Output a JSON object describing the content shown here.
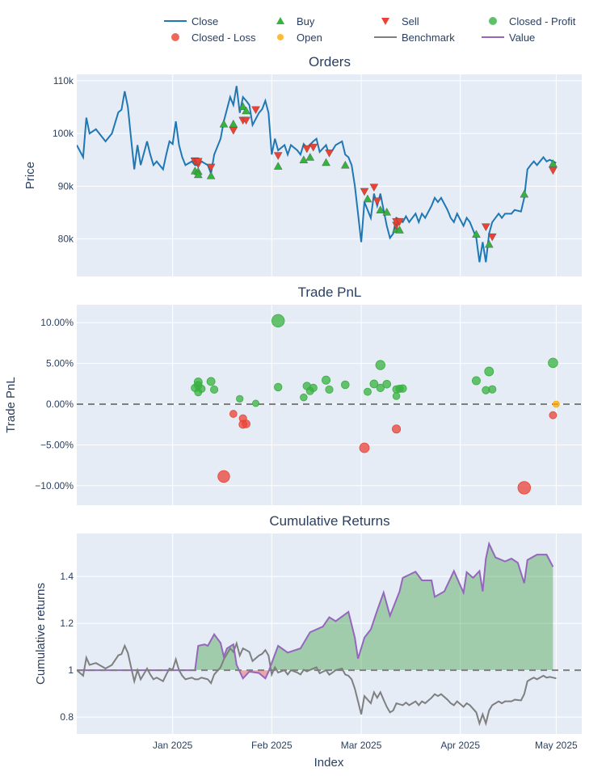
{
  "colors": {
    "close": "#1f77b4",
    "buy": "#37b13f",
    "sell": "#ea4335",
    "profit": "#37b13f",
    "loss": "#ea4335",
    "open": "#ffaa00",
    "benchmark": "#7f7f7f",
    "value": "#9467bd",
    "background": "#e5ecf6",
    "fill_positive": "rgba(0,128,0,0.3)",
    "fill_negative": "rgba(255,0,0,0.3)"
  },
  "legend": [
    {
      "label": "Close",
      "symbol": "line",
      "color": "#1f77b4"
    },
    {
      "label": "Buy",
      "symbol": "triangle-up",
      "color": "#37b13f"
    },
    {
      "label": "Sell",
      "symbol": "triangle-down",
      "color": "#ea4335"
    },
    {
      "label": "Closed - Profit",
      "symbol": "circle",
      "color": "#37b13f"
    },
    {
      "label": "Closed - Loss",
      "symbol": "circle",
      "color": "#ea4335"
    },
    {
      "label": "Open",
      "symbol": "circle",
      "color": "#ffaa00"
    },
    {
      "label": "Benchmark",
      "symbol": "line",
      "color": "#7f7f7f"
    },
    {
      "label": "Value",
      "symbol": "line",
      "color": "#9467bd"
    }
  ],
  "xaxis": {
    "label": "Index",
    "range": [
      "2024-12-02",
      "2025-05-09"
    ],
    "ticks": [
      {
        "date": "2025-01-01",
        "label": "Jan 2025"
      },
      {
        "date": "2025-02-01",
        "label": "Feb 2025"
      },
      {
        "date": "2025-03-01",
        "label": "Mar 2025"
      },
      {
        "date": "2025-04-01",
        "label": "Apr 2025"
      },
      {
        "date": "2025-05-01",
        "label": "May 2025"
      }
    ]
  },
  "chart_data": [
    {
      "type": "line",
      "title": "Orders",
      "ylabel": "Price",
      "ylim": [
        72900,
        111200
      ],
      "yticks": [
        {
          "value": 80000,
          "label": "80k"
        },
        {
          "value": 90000,
          "label": "90k"
        },
        {
          "value": 100000,
          "label": "100k"
        },
        {
          "value": 110000,
          "label": "110k"
        }
      ],
      "grid": true,
      "close": [
        [
          "2024-12-02",
          97800
        ],
        [
          "2024-12-04",
          95500
        ],
        [
          "2024-12-05",
          103000
        ],
        [
          "2024-12-06",
          100000
        ],
        [
          "2024-12-08",
          100800
        ],
        [
          "2024-12-11",
          98500
        ],
        [
          "2024-12-13",
          100000
        ],
        [
          "2024-12-15",
          104000
        ],
        [
          "2024-12-16",
          104500
        ],
        [
          "2024-12-17",
          108000
        ],
        [
          "2024-12-18",
          105000
        ],
        [
          "2024-12-19",
          99000
        ],
        [
          "2024-12-20",
          93200
        ],
        [
          "2024-12-21",
          97800
        ],
        [
          "2024-12-22",
          94000
        ],
        [
          "2024-12-24",
          98500
        ],
        [
          "2024-12-25",
          96000
        ],
        [
          "2024-12-26",
          94000
        ],
        [
          "2024-12-27",
          94700
        ],
        [
          "2024-12-29",
          93200
        ],
        [
          "2024-12-30",
          96000
        ],
        [
          "2024-12-31",
          98500
        ],
        [
          "2025-01-01",
          98000
        ],
        [
          "2025-01-02",
          102300
        ],
        [
          "2025-01-03",
          97800
        ],
        [
          "2025-01-04",
          95500
        ],
        [
          "2025-01-05",
          94000
        ],
        [
          "2025-01-07",
          94700
        ],
        [
          "2025-01-08",
          94000
        ],
        [
          "2025-01-09",
          94000
        ],
        [
          "2025-01-10",
          94700
        ],
        [
          "2025-01-12",
          94000
        ],
        [
          "2025-01-13",
          92400
        ],
        [
          "2025-01-14",
          96000
        ],
        [
          "2025-01-16",
          99000
        ],
        [
          "2025-01-17",
          102300
        ],
        [
          "2025-01-18",
          104600
        ],
        [
          "2025-01-19",
          106900
        ],
        [
          "2025-01-20",
          105400
        ],
        [
          "2025-01-21",
          109000
        ],
        [
          "2025-01-22",
          103900
        ],
        [
          "2025-01-23",
          106900
        ],
        [
          "2025-01-24",
          106200
        ],
        [
          "2025-01-25",
          105400
        ],
        [
          "2025-01-26",
          101600
        ],
        [
          "2025-01-28",
          103900
        ],
        [
          "2025-01-29",
          104600
        ],
        [
          "2025-01-30",
          106200
        ],
        [
          "2025-01-31",
          103900
        ],
        [
          "2025-02-01",
          96000
        ],
        [
          "2025-02-02",
          99000
        ],
        [
          "2025-02-03",
          96800
        ],
        [
          "2025-02-05",
          97800
        ],
        [
          "2025-02-06",
          96000
        ],
        [
          "2025-02-07",
          97800
        ],
        [
          "2025-02-09",
          96800
        ],
        [
          "2025-02-10",
          96000
        ],
        [
          "2025-02-11",
          98000
        ],
        [
          "2025-02-12",
          97300
        ],
        [
          "2025-02-14",
          98500
        ],
        [
          "2025-02-15",
          99000
        ],
        [
          "2025-02-16",
          96500
        ],
        [
          "2025-02-18",
          97800
        ],
        [
          "2025-02-19",
          95900
        ],
        [
          "2025-02-20",
          96800
        ],
        [
          "2025-02-21",
          97800
        ],
        [
          "2025-02-23",
          98500
        ],
        [
          "2025-02-24",
          96000
        ],
        [
          "2025-02-25",
          95500
        ],
        [
          "2025-02-26",
          94000
        ],
        [
          "2025-02-27",
          90100
        ],
        [
          "2025-02-28",
          84800
        ],
        [
          "2025-03-01",
          79400
        ],
        [
          "2025-03-02",
          87000
        ],
        [
          "2025-03-03",
          85500
        ],
        [
          "2025-03-04",
          84000
        ],
        [
          "2025-03-05",
          88600
        ],
        [
          "2025-03-06",
          86300
        ],
        [
          "2025-03-07",
          88600
        ],
        [
          "2025-03-08",
          85500
        ],
        [
          "2025-03-09",
          82500
        ],
        [
          "2025-03-10",
          80200
        ],
        [
          "2025-03-11",
          81000
        ],
        [
          "2025-03-12",
          84000
        ],
        [
          "2025-03-14",
          83200
        ],
        [
          "2025-03-15",
          84300
        ],
        [
          "2025-03-16",
          83200
        ],
        [
          "2025-03-18",
          84800
        ],
        [
          "2025-03-19",
          83200
        ],
        [
          "2025-03-20",
          84800
        ],
        [
          "2025-03-21",
          84000
        ],
        [
          "2025-03-23",
          86300
        ],
        [
          "2025-03-24",
          87800
        ],
        [
          "2025-03-25",
          87000
        ],
        [
          "2025-03-26",
          87800
        ],
        [
          "2025-03-28",
          85500
        ],
        [
          "2025-03-29",
          84000
        ],
        [
          "2025-03-30",
          83200
        ],
        [
          "2025-03-31",
          84800
        ],
        [
          "2025-04-02",
          82500
        ],
        [
          "2025-04-03",
          84000
        ],
        [
          "2025-04-04",
          83200
        ],
        [
          "2025-04-06",
          80200
        ],
        [
          "2025-04-07",
          75600
        ],
        [
          "2025-04-08",
          79400
        ],
        [
          "2025-04-09",
          75600
        ],
        [
          "2025-04-10",
          81000
        ],
        [
          "2025-04-11",
          83200
        ],
        [
          "2025-04-12",
          84000
        ],
        [
          "2025-04-13",
          84800
        ],
        [
          "2025-04-14",
          84000
        ],
        [
          "2025-04-15",
          84800
        ],
        [
          "2025-04-16",
          84800
        ],
        [
          "2025-04-17",
          84800
        ],
        [
          "2025-04-18",
          85500
        ],
        [
          "2025-04-20",
          85200
        ],
        [
          "2025-04-21",
          87800
        ],
        [
          "2025-04-22",
          93200
        ],
        [
          "2025-04-23",
          94000
        ],
        [
          "2025-04-24",
          94700
        ],
        [
          "2025-04-25",
          94000
        ],
        [
          "2025-04-27",
          95500
        ],
        [
          "2025-04-28",
          94700
        ],
        [
          "2025-04-29",
          95000
        ],
        [
          "2025-04-30",
          94700
        ],
        [
          "2025-05-01",
          94400
        ]
      ],
      "buys": [
        [
          "2025-01-08",
          92900
        ],
        [
          "2025-01-09",
          92800
        ],
        [
          "2025-01-09",
          92200
        ],
        [
          "2025-01-13",
          92000
        ],
        [
          "2025-01-17",
          101800
        ],
        [
          "2025-01-20",
          101800
        ],
        [
          "2025-01-23",
          105100
        ],
        [
          "2025-01-24",
          104300
        ],
        [
          "2025-02-03",
          93800
        ],
        [
          "2025-02-11",
          95000
        ],
        [
          "2025-02-13",
          95500
        ],
        [
          "2025-02-18",
          94500
        ],
        [
          "2025-02-24",
          94000
        ],
        [
          "2025-03-03",
          87600
        ],
        [
          "2025-03-07",
          85500
        ],
        [
          "2025-03-09",
          85100
        ],
        [
          "2025-03-12",
          81800
        ],
        [
          "2025-03-13",
          81700
        ],
        [
          "2025-04-06",
          80900
        ],
        [
          "2025-04-10",
          79000
        ],
        [
          "2025-04-21",
          88500
        ],
        [
          "2025-04-30",
          94300
        ]
      ],
      "sells": [
        [
          "2025-01-08",
          94800
        ],
        [
          "2025-01-08",
          94700
        ],
        [
          "2025-01-09",
          94200
        ],
        [
          "2025-01-09",
          94700
        ],
        [
          "2025-01-13",
          93600
        ],
        [
          "2025-01-20",
          100600
        ],
        [
          "2025-01-23",
          102500
        ],
        [
          "2025-01-24",
          102500
        ],
        [
          "2025-01-27",
          104500
        ],
        [
          "2025-02-03",
          95800
        ],
        [
          "2025-02-12",
          97100
        ],
        [
          "2025-02-14",
          97400
        ],
        [
          "2025-02-19",
          96300
        ],
        [
          "2025-03-02",
          89000
        ],
        [
          "2025-03-05",
          89800
        ],
        [
          "2025-03-06",
          87200
        ],
        [
          "2025-03-12",
          82600
        ],
        [
          "2025-03-12",
          83300
        ],
        [
          "2025-03-13",
          83300
        ],
        [
          "2025-04-09",
          82300
        ],
        [
          "2025-04-11",
          80400
        ],
        [
          "2025-04-30",
          93000
        ]
      ]
    },
    {
      "type": "scatter",
      "title": "Trade PnL",
      "ylabel": "Trade PnL",
      "ylim": [
        -12.4,
        12.2
      ],
      "yticks": [
        {
          "value": 10,
          "label": "10.00%"
        },
        {
          "value": 5,
          "label": "5.00%"
        },
        {
          "value": 0,
          "label": "0.00%"
        },
        {
          "value": -5,
          "label": "−5.00%"
        },
        {
          "value": -10,
          "label": "−10.00%"
        }
      ],
      "zero_line": "dashed",
      "closed_profit": [
        [
          "2025-01-09",
          2.72
        ],
        [
          "2025-01-09",
          2.32
        ],
        [
          "2025-01-08",
          1.99
        ],
        [
          "2025-01-10",
          1.89
        ],
        [
          "2025-01-09",
          1.46
        ],
        [
          "2025-01-13",
          2.78
        ],
        [
          "2025-01-14",
          1.79
        ],
        [
          "2025-01-22",
          0.66
        ],
        [
          "2025-01-27",
          0.1
        ],
        [
          "2025-02-03",
          10.23
        ],
        [
          "2025-02-03",
          2.09
        ],
        [
          "2025-02-11",
          0.83
        ],
        [
          "2025-02-12",
          2.22
        ],
        [
          "2025-02-13",
          1.62
        ],
        [
          "2025-02-14",
          1.99
        ],
        [
          "2025-02-18",
          2.95
        ],
        [
          "2025-02-19",
          1.79
        ],
        [
          "2025-02-24",
          2.38
        ],
        [
          "2025-03-03",
          1.52
        ],
        [
          "2025-03-05",
          2.48
        ],
        [
          "2025-03-07",
          4.8
        ],
        [
          "2025-03-07",
          1.99
        ],
        [
          "2025-03-09",
          2.45
        ],
        [
          "2025-03-12",
          0.99
        ],
        [
          "2025-03-12",
          1.82
        ],
        [
          "2025-03-13",
          1.89
        ],
        [
          "2025-03-14",
          1.92
        ],
        [
          "2025-04-06",
          2.88
        ],
        [
          "2025-04-10",
          4.01
        ],
        [
          "2025-04-09",
          1.72
        ],
        [
          "2025-04-11",
          1.82
        ],
        [
          "2025-04-30",
          5.07
        ]
      ],
      "closed_loss": [
        [
          "2025-01-20",
          -1.19
        ],
        [
          "2025-01-23",
          -1.75
        ],
        [
          "2025-01-23",
          -2.48
        ],
        [
          "2025-01-24",
          -2.42
        ],
        [
          "2025-01-17",
          -8.87
        ],
        [
          "2025-03-02",
          -5.36
        ],
        [
          "2025-03-12",
          -3.05
        ],
        [
          "2025-04-21",
          -10.26
        ],
        [
          "2025-04-30",
          -1.36
        ]
      ],
      "open": [
        [
          "2025-05-01",
          0.0
        ]
      ]
    },
    {
      "type": "area",
      "title": "Cumulative Returns",
      "ylabel": "Cumulative returns",
      "ylim": [
        0.728,
        1.583
      ],
      "yticks": [
        {
          "value": 0.8,
          "label": "0.8"
        },
        {
          "value": 1,
          "label": "1"
        },
        {
          "value": 1.2,
          "label": "1.2"
        },
        {
          "value": 1.4,
          "label": "1.4"
        }
      ],
      "baseline": 1,
      "benchmark": "Close normalized to first value",
      "value": [
        [
          "2024-12-02",
          1.0
        ],
        [
          "2025-01-08",
          1.0
        ],
        [
          "2025-01-09",
          1.104
        ],
        [
          "2025-01-11",
          1.11
        ],
        [
          "2025-01-12",
          1.104
        ],
        [
          "2025-01-14",
          1.153
        ],
        [
          "2025-01-16",
          1.116
        ],
        [
          "2025-01-17",
          1.058
        ],
        [
          "2025-01-18",
          1.093
        ],
        [
          "2025-01-20",
          1.11
        ],
        [
          "2025-01-21",
          1.023
        ],
        [
          "2025-01-23",
          0.965
        ],
        [
          "2025-01-25",
          0.994
        ],
        [
          "2025-01-28",
          0.988
        ],
        [
          "2025-01-30",
          0.965
        ],
        [
          "2025-01-31",
          0.994
        ],
        [
          "2025-02-03",
          1.104
        ],
        [
          "2025-02-06",
          1.075
        ],
        [
          "2025-02-10",
          1.093
        ],
        [
          "2025-02-13",
          1.162
        ],
        [
          "2025-02-17",
          1.186
        ],
        [
          "2025-02-19",
          1.226
        ],
        [
          "2025-02-21",
          1.209
        ],
        [
          "2025-02-25",
          1.249
        ],
        [
          "2025-02-27",
          1.139
        ],
        [
          "2025-02-28",
          1.049
        ],
        [
          "2025-03-02",
          1.139
        ],
        [
          "2025-03-04",
          1.174
        ],
        [
          "2025-03-06",
          1.255
        ],
        [
          "2025-03-08",
          1.331
        ],
        [
          "2025-03-10",
          1.232
        ],
        [
          "2025-03-13",
          1.336
        ],
        [
          "2025-03-14",
          1.394
        ],
        [
          "2025-03-18",
          1.42
        ],
        [
          "2025-03-20",
          1.383
        ],
        [
          "2025-03-23",
          1.383
        ],
        [
          "2025-03-24",
          1.313
        ],
        [
          "2025-03-27",
          1.336
        ],
        [
          "2025-03-30",
          1.423
        ],
        [
          "2025-04-02",
          1.331
        ],
        [
          "2025-04-03",
          1.418
        ],
        [
          "2025-04-05",
          1.394
        ],
        [
          "2025-04-07",
          1.423
        ],
        [
          "2025-04-08",
          1.336
        ],
        [
          "2025-04-09",
          1.476
        ],
        [
          "2025-04-10",
          1.539
        ],
        [
          "2025-04-12",
          1.481
        ],
        [
          "2025-04-15",
          1.464
        ],
        [
          "2025-04-17",
          1.476
        ],
        [
          "2025-04-19",
          1.458
        ],
        [
          "2025-04-21",
          1.371
        ],
        [
          "2025-04-22",
          1.47
        ],
        [
          "2025-04-25",
          1.493
        ],
        [
          "2025-04-28",
          1.493
        ],
        [
          "2025-04-30",
          1.441
        ]
      ]
    }
  ]
}
